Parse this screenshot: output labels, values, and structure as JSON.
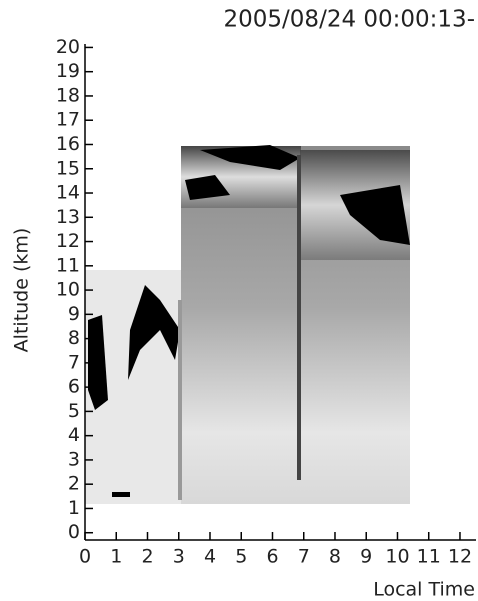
{
  "chart_data": {
    "type": "lidar-image",
    "title": "2005/08/24 00:00:13-",
    "x_label": "Local Time",
    "y_label": "Altitude (km)",
    "xlim": [
      0,
      12.5
    ],
    "xticks": [
      0,
      1,
      2,
      3,
      4,
      5,
      6,
      7,
      8,
      9,
      10,
      11,
      12
    ],
    "ylim": [
      -0.3,
      20.1
    ],
    "yticks": [
      0,
      1,
      2,
      3,
      4,
      5,
      6,
      7,
      8,
      9,
      10,
      11,
      12,
      13,
      14,
      15,
      16,
      17,
      18,
      19,
      20
    ]
  }
}
